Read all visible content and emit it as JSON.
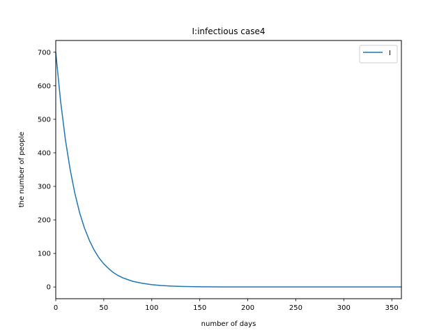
{
  "chart_data": {
    "type": "line",
    "title": "I:infectious  case4",
    "xlabel": "number of days",
    "ylabel": "the number of people",
    "xlim": [
      0,
      360
    ],
    "ylim": [
      -35,
      735
    ],
    "xticks": [
      0,
      50,
      100,
      150,
      200,
      250,
      300,
      350
    ],
    "yticks": [
      0,
      100,
      200,
      300,
      400,
      500,
      600,
      700
    ],
    "grid": false,
    "legend_position": "top-right",
    "series": [
      {
        "name": "I",
        "color": "#1f77b4",
        "x": [
          0,
          5,
          10,
          15,
          20,
          25,
          30,
          35,
          40,
          45,
          50,
          55,
          60,
          65,
          70,
          75,
          80,
          90,
          100,
          110,
          120,
          130,
          140,
          150,
          175,
          200,
          225,
          250,
          275,
          300,
          325,
          360
        ],
        "y": [
          700,
          555,
          440,
          350,
          278,
          220,
          175,
          139,
          110,
          87,
          69,
          55,
          43,
          34,
          27,
          22,
          17,
          11,
          7,
          4.3,
          2.7,
          1.7,
          1.1,
          0.7,
          0.2,
          0.06,
          0.02,
          0,
          0,
          0,
          0,
          0
        ]
      }
    ]
  }
}
